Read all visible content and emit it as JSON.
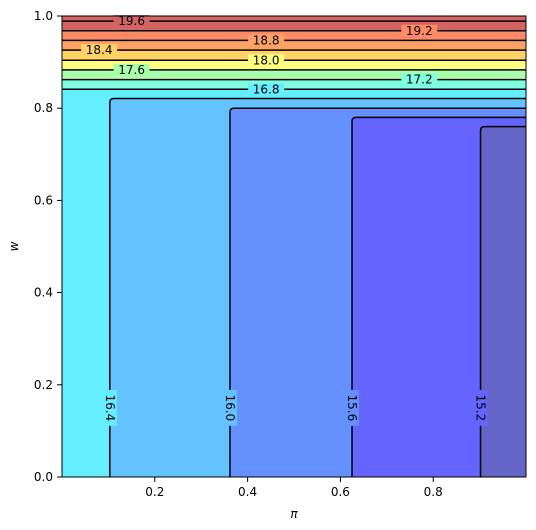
{
  "chart_data": {
    "type": "contour",
    "title": "",
    "xlabel": "π",
    "ylabel": "w",
    "xlim": [
      0.0,
      1.0
    ],
    "ylim": [
      0.0,
      1.0
    ],
    "xticks": [
      "0.2",
      "0.4",
      "0.6",
      "0.8"
    ],
    "xtick_values": [
      0.2,
      0.4,
      0.6,
      0.8
    ],
    "yticks": [
      "0.0",
      "0.2",
      "0.4",
      "0.6",
      "0.8",
      "1.0"
    ],
    "ytick_values": [
      0.0,
      0.2,
      0.4,
      0.6,
      0.8,
      1.0
    ],
    "grid": false,
    "colormap": "jet (alpha 0.6)",
    "levels": [
      15.2,
      15.6,
      16.0,
      16.4,
      16.8,
      17.2,
      17.6,
      18.0,
      18.4,
      18.8,
      19.2,
      19.6
    ],
    "fill_regions": [
      {
        "range": [
          14.8,
          15.2
        ],
        "color": "#6565c8"
      },
      {
        "range": [
          15.2,
          15.6
        ],
        "color": "#6464ff"
      },
      {
        "range": [
          15.6,
          16.0
        ],
        "color": "#6491ff"
      },
      {
        "range": [
          16.0,
          16.4
        ],
        "color": "#64c3ff"
      },
      {
        "range": [
          16.4,
          16.8
        ],
        "color": "#64eeff"
      },
      {
        "range": [
          16.8,
          17.2
        ],
        "color": "#80ffe0"
      },
      {
        "range": [
          17.2,
          17.6
        ],
        "color": "#a9ffaa"
      },
      {
        "range": [
          17.6,
          18.0
        ],
        "color": "#ffff7f"
      },
      {
        "range": [
          18.0,
          18.4
        ],
        "color": "#ffd266"
      },
      {
        "range": [
          18.4,
          18.8
        ],
        "color": "#ffa266"
      },
      {
        "range": [
          18.8,
          19.2
        ],
        "color": "#ff8a66"
      },
      {
        "range": [
          19.2,
          19.6
        ],
        "color": "#d46464"
      }
    ],
    "vertical_contours": [
      {
        "level": "16.4",
        "x": 0.103,
        "w_top": 0.821
      },
      {
        "level": "16.0",
        "x": 0.362,
        "w_top": 0.8
      },
      {
        "level": "15.6",
        "x": 0.625,
        "w_top": 0.78
      },
      {
        "level": "15.2",
        "x": 0.902,
        "w_top": 0.76
      }
    ],
    "horizontal_contours": [
      {
        "level": "16.8",
        "w": 0.841
      },
      {
        "level": "17.2",
        "w": 0.862
      },
      {
        "level": "17.6",
        "w": 0.883
      },
      {
        "level": "18.0",
        "w": 0.904
      },
      {
        "level": "18.4",
        "w": 0.926
      },
      {
        "level": "18.8",
        "w": 0.947
      },
      {
        "level": "19.2",
        "w": 0.968
      },
      {
        "level": "19.6",
        "w": 0.989
      }
    ],
    "contour_labels": [
      {
        "text": "16.4",
        "x": 0.103,
        "w": 0.15,
        "rotated": true
      },
      {
        "text": "16.0",
        "x": 0.362,
        "w": 0.15,
        "rotated": true
      },
      {
        "text": "15.6",
        "x": 0.625,
        "w": 0.15,
        "rotated": true
      },
      {
        "text": "15.2",
        "x": 0.902,
        "w": 0.15,
        "rotated": true
      },
      {
        "text": "16.8",
        "x": 0.44,
        "w": 0.841,
        "rotated": false
      },
      {
        "text": "17.2",
        "x": 0.77,
        "w": 0.862,
        "rotated": false
      },
      {
        "text": "17.6",
        "x": 0.15,
        "w": 0.883,
        "rotated": false
      },
      {
        "text": "18.0",
        "x": 0.44,
        "w": 0.904,
        "rotated": false
      },
      {
        "text": "18.4",
        "x": 0.08,
        "w": 0.926,
        "rotated": false
      },
      {
        "text": "18.8",
        "x": 0.44,
        "w": 0.947,
        "rotated": false
      },
      {
        "text": "19.2",
        "x": 0.77,
        "w": 0.968,
        "rotated": false
      },
      {
        "text": "19.6",
        "x": 0.15,
        "w": 0.989,
        "rotated": false
      }
    ]
  }
}
